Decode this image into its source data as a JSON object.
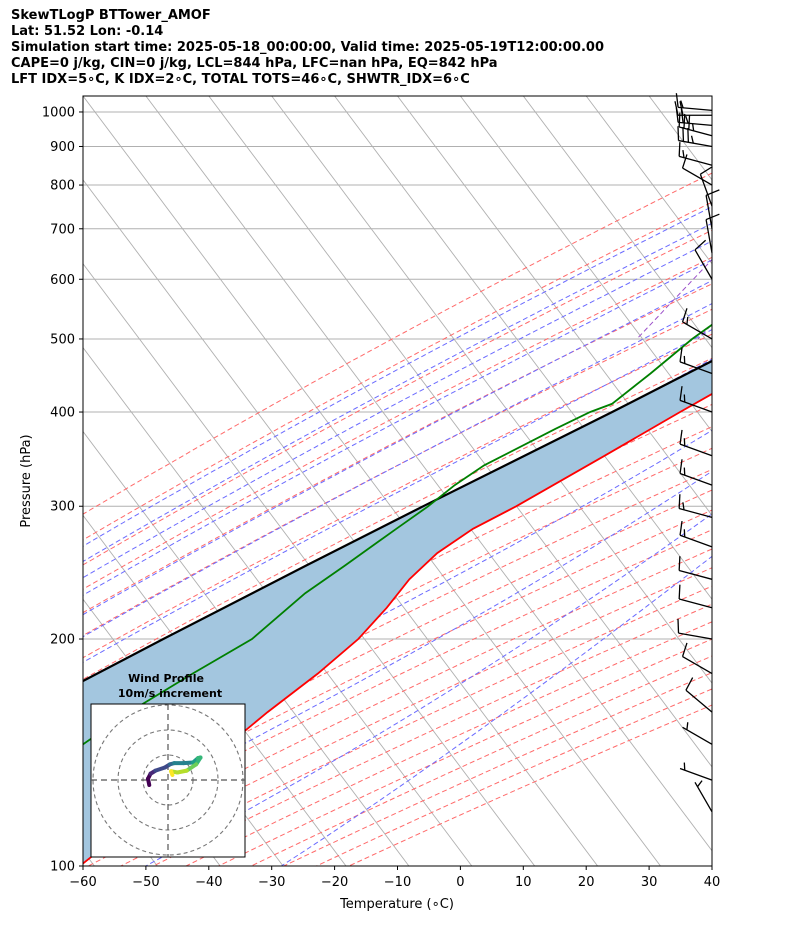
{
  "header": {
    "line1": "SkewTLogP BTTower_AMOF",
    "line2": "Lat: 51.52   Lon: -0.14",
    "line3": "Simulation start time: 2025-05-18_00:00:00, Valid time: 2025-05-19T12:00:00.00",
    "line4": "CAPE=0 j/kg, CIN=0 j/kg, LCL=844 hPa, LFC=nan hPa, EQ=842 hPa",
    "line5": "LFT IDX=5∘C, K IDX=2∘C, TOTAL TOTS=46∘C, SHWTR_IDX=6∘C"
  },
  "chart_data": {
    "type": "line",
    "xlabel": "Temperature (∘C)",
    "ylabel": "Pressure (hPa)",
    "xlim": [
      -60,
      40
    ],
    "ylim": [
      1050,
      100
    ],
    "y_scale": "log",
    "x_ticks": [
      "−60",
      "−50",
      "−40",
      "−30",
      "−20",
      "−10",
      "0",
      "10",
      "20",
      "30",
      "40"
    ],
    "x_tick_values": [
      -60,
      -50,
      -40,
      -30,
      -20,
      -10,
      0,
      10,
      20,
      30,
      40
    ],
    "y_ticks": [
      "1000",
      "900",
      "800",
      "700",
      "600",
      "500",
      "400",
      "300",
      "200",
      "100"
    ],
    "y_tick_values": [
      1000,
      900,
      800,
      700,
      600,
      500,
      400,
      300,
      200,
      100
    ],
    "grid": true,
    "colors": {
      "temperature": "#ff0000",
      "dewpoint": "#008000",
      "parcel": "#000000",
      "cape_fill": "#a3c6df",
      "dry_adiabat": "#ff6a6a",
      "moist_adiabat": "#6b6bff",
      "mixing_ratio": "#9b4fc9",
      "isotherm": "#b0b0b0"
    },
    "temperature_profile": [
      [
        1010,
        18.5
      ],
      [
        960,
        14.5
      ],
      [
        900,
        11.2
      ],
      [
        855,
        9.0
      ],
      [
        830,
        9.0
      ],
      [
        800,
        9.0
      ],
      [
        750,
        8.6
      ],
      [
        700,
        7.5
      ],
      [
        650,
        5.0
      ],
      [
        600,
        1.2
      ],
      [
        550,
        -3.0
      ],
      [
        500,
        -7.6
      ],
      [
        450,
        -13.0
      ],
      [
        400,
        -19.2
      ],
      [
        350,
        -26.0
      ],
      [
        300,
        -34.0
      ],
      [
        280,
        -38.2
      ],
      [
        260,
        -41.0
      ],
      [
        240,
        -42.3
      ],
      [
        220,
        -42.5
      ],
      [
        200,
        -43.3
      ],
      [
        180,
        -45.6
      ],
      [
        160,
        -49.0
      ],
      [
        140,
        -52.2
      ],
      [
        120,
        -55.5
      ],
      [
        110,
        -58.0
      ],
      [
        100,
        -60.5
      ]
    ],
    "dewpoint_profile": [
      [
        1010,
        7.0
      ],
      [
        900,
        8.5
      ],
      [
        860,
        7.6
      ],
      [
        830,
        4.5
      ],
      [
        800,
        -2.5
      ],
      [
        760,
        -8.5
      ],
      [
        700,
        -16.5
      ],
      [
        680,
        -17.8
      ],
      [
        600,
        -20.5
      ],
      [
        550,
        -22.8
      ],
      [
        500,
        -26.0
      ],
      [
        450,
        -28.5
      ],
      [
        410,
        -31.0
      ],
      [
        400,
        -33.5
      ],
      [
        380,
        -37.0
      ],
      [
        340,
        -44.0
      ],
      [
        320,
        -46.3
      ],
      [
        300,
        -48.0
      ],
      [
        280,
        -50.4
      ],
      [
        250,
        -54.2
      ],
      [
        230,
        -57.2
      ],
      [
        200,
        -60.2
      ],
      [
        180,
        -65.5
      ],
      [
        160,
        -71.0
      ],
      [
        145,
        -74.5
      ],
      [
        130,
        -77.0
      ],
      [
        100,
        -84.0
      ]
    ],
    "parcel_profile": [
      [
        1010,
        18.5
      ],
      [
        950,
        14.0
      ],
      [
        900,
        11.5
      ],
      [
        855,
        9.8
      ],
      [
        844,
        9.0
      ],
      [
        800,
        7.0
      ],
      [
        700,
        1.5
      ],
      [
        600,
        -6.0
      ],
      [
        500,
        -16.0
      ],
      [
        400,
        -30.0
      ],
      [
        300,
        -48.8
      ],
      [
        250,
        -60.4
      ],
      [
        200,
        -74.3
      ],
      [
        150,
        -91.7
      ],
      [
        100,
        -116.3
      ]
    ],
    "cape_region": "shaded between parcel and temperature from 842 hPa to 100 hPa",
    "wind_barbs": [
      {
        "p": 1005,
        "dir": 275,
        "speed_kt": 15
      },
      {
        "p": 990,
        "dir": 270,
        "speed_kt": 20
      },
      {
        "p": 960,
        "dir": 275,
        "speed_kt": 25
      },
      {
        "p": 930,
        "dir": 285,
        "speed_kt": 35
      },
      {
        "p": 900,
        "dir": 280,
        "speed_kt": 35
      },
      {
        "p": 850,
        "dir": 285,
        "speed_kt": 15
      },
      {
        "p": 800,
        "dir": 300,
        "speed_kt": 10
      },
      {
        "p": 750,
        "dir": 340,
        "speed_kt": 10
      },
      {
        "p": 700,
        "dir": 350,
        "speed_kt": 10
      },
      {
        "p": 650,
        "dir": 350,
        "speed_kt": 10
      },
      {
        "p": 600,
        "dir": 330,
        "speed_kt": 10
      },
      {
        "p": 500,
        "dir": 300,
        "speed_kt": 15
      },
      {
        "p": 450,
        "dir": 290,
        "speed_kt": 15
      },
      {
        "p": 400,
        "dir": 290,
        "speed_kt": 15
      },
      {
        "p": 350,
        "dir": 290,
        "speed_kt": 15
      },
      {
        "p": 320,
        "dir": 290,
        "speed_kt": 15
      },
      {
        "p": 290,
        "dir": 285,
        "speed_kt": 15
      },
      {
        "p": 265,
        "dir": 290,
        "speed_kt": 15
      },
      {
        "p": 240,
        "dir": 285,
        "speed_kt": 10
      },
      {
        "p": 220,
        "dir": 285,
        "speed_kt": 10
      },
      {
        "p": 200,
        "dir": 280,
        "speed_kt": 10
      },
      {
        "p": 180,
        "dir": 300,
        "speed_kt": 10
      },
      {
        "p": 160,
        "dir": 310,
        "speed_kt": 10
      },
      {
        "p": 145,
        "dir": 300,
        "speed_kt": 5
      },
      {
        "p": 130,
        "dir": 290,
        "speed_kt": 5
      },
      {
        "p": 118,
        "dir": 330,
        "speed_kt": 5
      }
    ],
    "hodograph": {
      "title": "Wind Profile",
      "subtitle": "10m/s increment",
      "ring_increment_ms": 10,
      "rings": 3,
      "points": [
        [
          -3.0,
          -0.8
        ],
        [
          -3.2,
          0.2
        ],
        [
          -2.8,
          1.0
        ],
        [
          -2.0,
          1.5
        ],
        [
          -0.5,
          2.0
        ],
        [
          0.3,
          2.5
        ],
        [
          1.0,
          2.7
        ],
        [
          2.5,
          2.7
        ],
        [
          4.0,
          2.8
        ],
        [
          4.8,
          3.5
        ],
        [
          5.2,
          3.6
        ],
        [
          4.5,
          2.5
        ],
        [
          3.0,
          1.5
        ],
        [
          1.5,
          1.2
        ],
        [
          0.5,
          1.4
        ],
        [
          0.7,
          0.8
        ]
      ]
    }
  }
}
